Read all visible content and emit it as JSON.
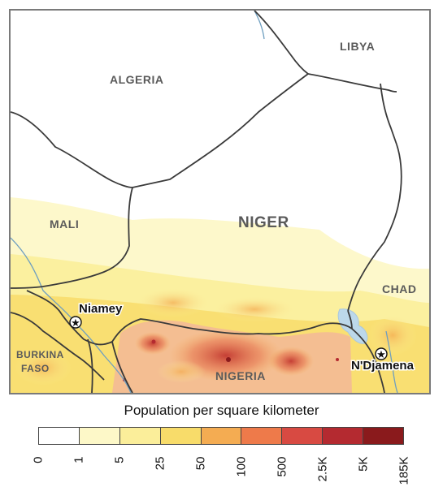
{
  "map": {
    "countries": {
      "algeria": "ALGERIA",
      "libya": "LIBYA",
      "mali": "MALI",
      "niger": "NIGER",
      "chad": "CHAD",
      "burkina_1": "BURKINA",
      "burkina_2": "FASO",
      "nigeria": "NIGERIA"
    },
    "cities": {
      "niamey": "Niamey",
      "ndjamena": "N'Djamena"
    }
  },
  "legend": {
    "title": "Population per square kilometer",
    "colors": [
      "#ffffff",
      "#fdf8c8",
      "#fbee9a",
      "#f8dc6a",
      "#f4ac52",
      "#ee7a4a",
      "#d84a42",
      "#b42a30",
      "#8a1a1c"
    ],
    "ticks": [
      "0",
      "1",
      "5",
      "25",
      "50",
      "100",
      "500",
      "2.5K",
      "5K",
      "185K"
    ]
  }
}
